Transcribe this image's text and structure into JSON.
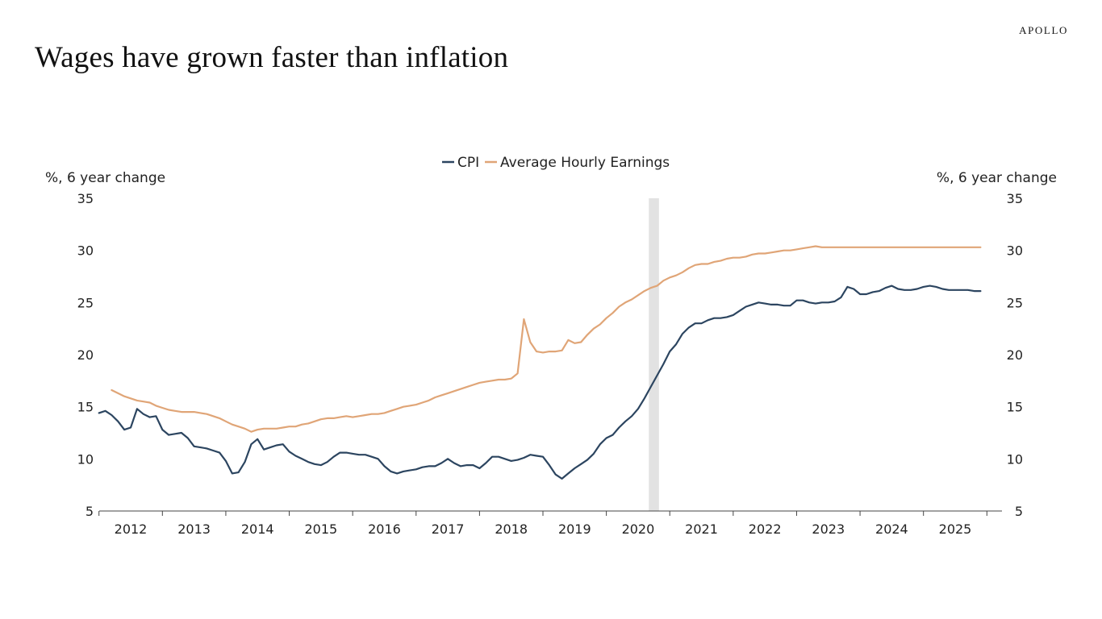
{
  "header": {
    "brand": "APOLLO",
    "title": "Wages have grown faster than inflation"
  },
  "colors": {
    "cpi": "#2c4560",
    "ahe": "#e0a577",
    "recession": "#e2e2e2",
    "axis": "#444444"
  },
  "chart_data": {
    "type": "line",
    "title": "Wages have grown faster than inflation",
    "ylabel_left": "%, 6 year change",
    "ylabel_right": "%, 6 year change",
    "ylim": [
      5,
      35
    ],
    "yticks": [
      5,
      10,
      15,
      20,
      25,
      30,
      35
    ],
    "xlim": [
      2011.5,
      2025.5
    ],
    "xticks": [
      2012,
      2013,
      2014,
      2015,
      2016,
      2017,
      2018,
      2019,
      2020,
      2021,
      2022,
      2023,
      2024,
      2025
    ],
    "legend_position": "top-center",
    "legend": [
      "CPI",
      "Average Hourly Earnings"
    ],
    "grid": false,
    "shaded_period": {
      "start": 2020.17,
      "end": 2020.33,
      "label": ""
    },
    "series": [
      {
        "name": "CPI",
        "key": "cpi",
        "x": [
          2011.5,
          2011.6,
          2011.7,
          2011.8,
          2011.9,
          2012.0,
          2012.1,
          2012.2,
          2012.3,
          2012.4,
          2012.5,
          2012.6,
          2012.7,
          2012.8,
          2012.9,
          2013.0,
          2013.1,
          2013.2,
          2013.3,
          2013.4,
          2013.5,
          2013.6,
          2013.7,
          2013.8,
          2013.9,
          2014.0,
          2014.1,
          2014.2,
          2014.3,
          2014.4,
          2014.5,
          2014.6,
          2014.7,
          2014.8,
          2014.9,
          2015.0,
          2015.1,
          2015.2,
          2015.3,
          2015.4,
          2015.5,
          2015.6,
          2015.7,
          2015.8,
          2015.9,
          2016.0,
          2016.1,
          2016.2,
          2016.3,
          2016.4,
          2016.5,
          2016.6,
          2016.7,
          2016.8,
          2016.9,
          2017.0,
          2017.1,
          2017.2,
          2017.3,
          2017.4,
          2017.5,
          2017.6,
          2017.7,
          2017.8,
          2017.9,
          2018.0,
          2018.1,
          2018.2,
          2018.3,
          2018.4,
          2018.5,
          2018.6,
          2018.7,
          2018.8,
          2018.9,
          2019.0,
          2019.1,
          2019.2,
          2019.3,
          2019.4,
          2019.5,
          2019.6,
          2019.7,
          2019.8,
          2019.9,
          2020.0,
          2020.1,
          2020.2,
          2020.3,
          2020.4,
          2020.5,
          2020.6,
          2020.7,
          2020.8,
          2020.9,
          2021.0,
          2021.1,
          2021.2,
          2021.3,
          2021.4,
          2021.5,
          2021.6,
          2021.7,
          2021.8,
          2021.9,
          2022.0,
          2022.1,
          2022.2,
          2022.3,
          2022.4,
          2022.5,
          2022.6,
          2022.7,
          2022.8,
          2022.9,
          2023.0,
          2023.1,
          2023.2,
          2023.3,
          2023.4,
          2023.5,
          2023.6,
          2023.7,
          2023.8,
          2023.9,
          2024.0,
          2024.1,
          2024.2,
          2024.3,
          2024.4,
          2024.5,
          2024.6,
          2024.7,
          2024.8,
          2024.9,
          2025.0,
          2025.1,
          2025.2,
          2025.3,
          2025.4
        ],
        "values": [
          14.4,
          14.6,
          14.2,
          13.6,
          12.8,
          13.0,
          14.8,
          14.3,
          14.0,
          14.1,
          12.8,
          12.3,
          12.4,
          12.5,
          12.0,
          11.2,
          11.1,
          11.0,
          10.8,
          10.6,
          9.8,
          8.6,
          8.7,
          9.7,
          11.4,
          11.9,
          10.9,
          11.1,
          11.3,
          11.4,
          10.7,
          10.3,
          10.0,
          9.7,
          9.5,
          9.4,
          9.7,
          10.2,
          10.6,
          10.6,
          10.5,
          10.4,
          10.4,
          10.2,
          10.0,
          9.3,
          8.8,
          8.6,
          8.8,
          8.9,
          9.0,
          9.2,
          9.3,
          9.3,
          9.6,
          10.0,
          9.6,
          9.3,
          9.4,
          9.4,
          9.1,
          9.6,
          10.2,
          10.2,
          10.0,
          9.8,
          9.9,
          10.1,
          10.4,
          10.3,
          10.2,
          9.4,
          8.5,
          8.1,
          8.6,
          9.1,
          9.5,
          9.9,
          10.5,
          11.4,
          12.0,
          12.3,
          13.0,
          13.6,
          14.1,
          14.8,
          15.8,
          16.9,
          18.0,
          19.1,
          20.3,
          21.0,
          22.0,
          22.6,
          23.0,
          23.0,
          23.3,
          23.5,
          23.5,
          23.6,
          23.8,
          24.2,
          24.6,
          24.8,
          25.0,
          24.9,
          24.8,
          24.8,
          24.7,
          24.7,
          25.2,
          25.2,
          25.0,
          24.9,
          25.0,
          25.0,
          25.1,
          25.5,
          26.5,
          26.3,
          25.8,
          25.8,
          26.0,
          26.1,
          26.4,
          26.6,
          26.3,
          26.2,
          26.2,
          26.3,
          26.5,
          26.6,
          26.5,
          26.3,
          26.2,
          26.2,
          26.2,
          26.2,
          26.1,
          26.1
        ],
        "values_note": "",
        "xdesc": ""
      },
      {
        "name": "Average Hourly Earnings",
        "key": "ahe",
        "x": [
          2011.7,
          2011.8,
          2011.9,
          2012.0,
          2012.1,
          2012.2,
          2012.3,
          2012.4,
          2012.5,
          2012.6,
          2012.7,
          2012.8,
          2012.9,
          2013.0,
          2013.1,
          2013.2,
          2013.3,
          2013.4,
          2013.5,
          2013.6,
          2013.7,
          2013.8,
          2013.9,
          2014.0,
          2014.1,
          2014.2,
          2014.3,
          2014.4,
          2014.5,
          2014.6,
          2014.7,
          2014.8,
          2014.9,
          2015.0,
          2015.1,
          2015.2,
          2015.3,
          2015.4,
          2015.5,
          2015.6,
          2015.7,
          2015.8,
          2015.9,
          2016.0,
          2016.1,
          2016.2,
          2016.3,
          2016.4,
          2016.5,
          2016.6,
          2016.7,
          2016.8,
          2016.9,
          2017.0,
          2017.1,
          2017.2,
          2017.3,
          2017.4,
          2017.5,
          2017.6,
          2017.7,
          2017.8,
          2017.9,
          2018.0,
          2018.1,
          2018.2,
          2018.3,
          2018.4,
          2018.5,
          2018.6,
          2018.7,
          2018.8,
          2018.9,
          2019.0,
          2019.1,
          2019.2,
          2019.3,
          2019.4,
          2019.5,
          2019.6,
          2019.7,
          2019.8,
          2019.9,
          2020.0,
          2020.1,
          2020.2,
          2020.3,
          2020.4,
          2020.5,
          2020.6,
          2020.7,
          2020.8,
          2020.9,
          2021.0,
          2021.1,
          2021.2,
          2021.3,
          2021.4,
          2021.5,
          2021.6,
          2021.7,
          2021.8,
          2021.9,
          2022.0,
          2022.1,
          2022.2,
          2022.3,
          2022.4,
          2022.5,
          2022.6,
          2022.7,
          2022.8,
          2022.9,
          2023.0,
          2023.1,
          2023.2,
          2023.3,
          2023.4,
          2023.5,
          2023.6,
          2023.7,
          2023.8,
          2023.9,
          2024.0,
          2024.1,
          2024.2,
          2024.3,
          2024.4,
          2024.5,
          2024.6,
          2024.7,
          2024.8,
          2024.9,
          2025.0,
          2025.1,
          2025.2,
          2025.3,
          2025.4
        ],
        "values": [
          16.6,
          16.3,
          16.0,
          15.8,
          15.6,
          15.5,
          15.4,
          15.1,
          14.9,
          14.7,
          14.6,
          14.5,
          14.5,
          14.5,
          14.4,
          14.3,
          14.1,
          13.9,
          13.6,
          13.3,
          13.1,
          12.9,
          12.6,
          12.8,
          12.9,
          12.9,
          12.9,
          13.0,
          13.1,
          13.1,
          13.3,
          13.4,
          13.6,
          13.8,
          13.9,
          13.9,
          14.0,
          14.1,
          14.0,
          14.1,
          14.2,
          14.3,
          14.3,
          14.4,
          14.6,
          14.8,
          15.0,
          15.1,
          15.2,
          15.4,
          15.6,
          15.9,
          16.1,
          16.3,
          16.5,
          16.7,
          16.9,
          17.1,
          17.3,
          17.4,
          17.5,
          17.6,
          17.6,
          17.7,
          18.2,
          23.4,
          21.2,
          20.3,
          20.2,
          20.3,
          20.3,
          20.4,
          21.4,
          21.1,
          21.2,
          21.9,
          22.5,
          22.9,
          23.5,
          24.0,
          24.6,
          25.0,
          25.3,
          25.7,
          26.1,
          26.4,
          26.6,
          27.1,
          27.4,
          27.6,
          27.9,
          28.3,
          28.6,
          28.7,
          28.7,
          28.9,
          29.0,
          29.2,
          29.3,
          29.3,
          29.4,
          29.6,
          29.7,
          29.7,
          29.8,
          29.9,
          30.0,
          30.0,
          30.1,
          30.2,
          30.3,
          30.4,
          30.3,
          30.3,
          30.3,
          30.3,
          30.3,
          30.3,
          30.3,
          30.3,
          30.3,
          30.3,
          30.3,
          30.3,
          30.3,
          30.3,
          30.3,
          30.3,
          30.3,
          30.3,
          30.3,
          30.3,
          30.3,
          30.3,
          30.3,
          30.3,
          30.3,
          30.3
        ],
        "values_note": "",
        "xdesc": ""
      }
    ]
  }
}
